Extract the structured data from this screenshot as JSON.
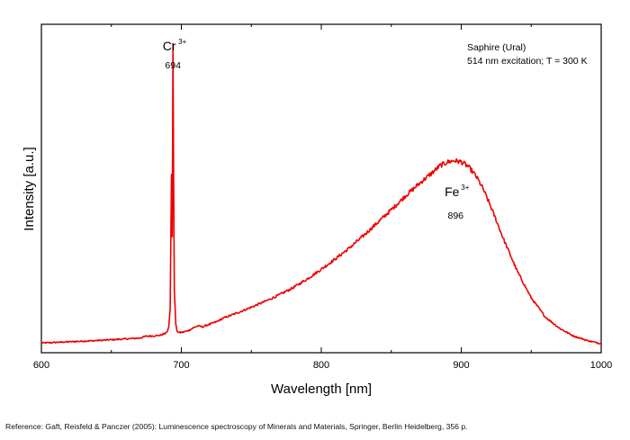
{
  "chart_data": {
    "type": "line",
    "xlabel": "Wavelength [nm]",
    "ylabel": "Intensity [a.u.]",
    "xlim": [
      600,
      1000
    ],
    "ylim": [
      0,
      100
    ],
    "x_ticks": [
      "600",
      "700",
      "800",
      "900",
      "1000"
    ],
    "x_tick_values": [
      600,
      700,
      800,
      900,
      1000
    ],
    "grid": false,
    "legend": "none",
    "line_color": "#ee0000",
    "y_tick_labels": false,
    "info_lines": [
      "Saphire (Ural)",
      "514 nm excitation; T = 300 K"
    ],
    "annotations": [
      {
        "ion": "Cr",
        "charge": "3+",
        "peak": "694",
        "x": 694
      },
      {
        "ion": "Fe",
        "charge": "3+",
        "peak": "896",
        "x": 896
      }
    ],
    "series": [
      {
        "x": [
          600,
          620,
          640,
          660,
          670,
          675,
          680,
          685,
          688,
          690,
          691,
          692,
          693,
          693.5,
          694,
          694.5,
          695,
          696,
          697,
          698,
          700,
          703,
          706,
          709,
          712,
          715,
          718,
          720,
          725,
          730,
          740,
          750,
          760,
          770,
          780,
          790,
          800,
          810,
          820,
          830,
          840,
          850,
          860,
          870,
          880,
          885,
          890,
          895,
          900,
          905,
          910,
          915,
          920,
          925,
          930,
          940,
          950,
          960,
          970,
          980,
          990,
          1000
        ],
        "values": [
          0.8,
          1.2,
          1.6,
          2.1,
          2.4,
          3.0,
          3.1,
          3.3,
          3.8,
          4.5,
          6.0,
          12.0,
          55.0,
          35.0,
          97.0,
          55.0,
          18.0,
          7.0,
          4.5,
          4.2,
          4.2,
          4.5,
          5.0,
          5.8,
          6.3,
          6.0,
          6.5,
          6.8,
          7.6,
          8.8,
          10.5,
          12.3,
          14.2,
          16.3,
          18.6,
          21.4,
          24.5,
          27.8,
          31.3,
          35.2,
          39.4,
          43.6,
          48.0,
          52.0,
          55.8,
          57.8,
          58.9,
          59.4,
          59.0,
          57.5,
          54.8,
          50.9,
          45.8,
          40.2,
          34.4,
          23.9,
          15.3,
          9.2,
          5.6,
          3.1,
          1.6,
          0.6
        ]
      }
    ]
  },
  "reference": "Reference: Gaft, Reisfeld & Panczer (2005): Luminescence spectroscopy of Minerals and Materials, Springer, Berlin Heidelberg, 356 p."
}
